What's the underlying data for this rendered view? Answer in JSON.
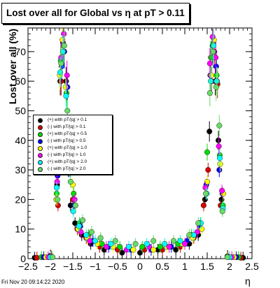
{
  "chart_data": {
    "type": "scatter",
    "title": "Lost over all for Global vs   η at pT > 0.11",
    "xlabel": "η",
    "ylabel": "Lost over all (%)",
    "xlim": [
      -2.5,
      2.5
    ],
    "ylim": [
      0,
      78
    ],
    "x_ticks": [
      "−2.5",
      "−2",
      "−1.5",
      "−1",
      "−0.5",
      "0",
      "0.5",
      "1",
      "1.5",
      "2",
      "2.5"
    ],
    "y_ticks": [
      "0",
      "10",
      "20",
      "30",
      "40",
      "50",
      "60",
      "70"
    ],
    "legend_position": "middle-left",
    "grid": false,
    "series": [
      {
        "name": "(+) with pT/|q| > 0.1",
        "color": "#000000",
        "points": [
          [
            -2.35,
            0.3
          ],
          [
            -2.0,
            1.0
          ],
          [
            -1.85,
            25
          ],
          [
            -1.78,
            60
          ],
          [
            -1.72,
            73
          ],
          [
            -1.65,
            60
          ],
          [
            -1.6,
            30
          ],
          [
            -1.55,
            18
          ],
          [
            -1.45,
            12
          ],
          [
            -1.3,
            8
          ],
          [
            -1.1,
            5
          ],
          [
            -0.8,
            3
          ],
          [
            -0.4,
            2
          ],
          [
            0.0,
            2
          ],
          [
            0.4,
            3
          ],
          [
            0.8,
            3
          ],
          [
            1.1,
            5
          ],
          [
            1.3,
            8
          ],
          [
            1.45,
            20
          ],
          [
            1.55,
            43
          ],
          [
            1.62,
            72
          ],
          [
            1.68,
            60
          ],
          [
            1.75,
            40
          ],
          [
            1.82,
            20
          ],
          [
            1.95,
            0.8
          ],
          [
            2.3,
            0.3
          ]
        ]
      },
      {
        "name": "(-) with pT/|q| > 0.1",
        "color": "#d40000",
        "points": [
          [
            -2.3,
            0.3
          ],
          [
            -1.98,
            0.8
          ],
          [
            -1.83,
            18
          ],
          [
            -1.76,
            60
          ],
          [
            -1.7,
            70
          ],
          [
            -1.63,
            58
          ],
          [
            -1.58,
            32
          ],
          [
            -1.5,
            20
          ],
          [
            -1.4,
            10
          ],
          [
            -1.2,
            7
          ],
          [
            -0.9,
            4
          ],
          [
            -0.5,
            3
          ],
          [
            0.1,
            3
          ],
          [
            0.5,
            3
          ],
          [
            0.9,
            4
          ],
          [
            1.2,
            7
          ],
          [
            1.42,
            18
          ],
          [
            1.52,
            30
          ],
          [
            1.6,
            60
          ],
          [
            1.66,
            70
          ],
          [
            1.73,
            59
          ],
          [
            1.8,
            18
          ],
          [
            1.96,
            0.8
          ],
          [
            2.25,
            0.3
          ]
        ]
      },
      {
        "name": "(+) with pT/|q| > 0.5",
        "color": "#00dd00",
        "points": [
          [
            -2.2,
            0.5
          ],
          [
            -1.86,
            22
          ],
          [
            -1.77,
            67
          ],
          [
            -1.71,
            72
          ],
          [
            -1.64,
            56
          ],
          [
            -1.57,
            35
          ],
          [
            -1.48,
            22
          ],
          [
            -1.35,
            12
          ],
          [
            -1.15,
            8
          ],
          [
            -0.85,
            5
          ],
          [
            -0.45,
            4
          ],
          [
            0.05,
            4
          ],
          [
            0.45,
            4
          ],
          [
            0.85,
            5
          ],
          [
            1.15,
            8
          ],
          [
            1.35,
            12
          ],
          [
            1.5,
            36
          ],
          [
            1.58,
            68
          ],
          [
            1.64,
            73
          ],
          [
            1.71,
            62
          ],
          [
            1.78,
            35
          ],
          [
            1.85,
            18
          ],
          [
            2.2,
            0.5
          ]
        ]
      },
      {
        "name": "(-) with pT/|q| > 0.5",
        "color": "#0000ff",
        "points": [
          [
            -2.15,
            0.5
          ],
          [
            -1.84,
            28
          ],
          [
            -1.75,
            65
          ],
          [
            -1.69,
            70
          ],
          [
            -1.62,
            58
          ],
          [
            -1.56,
            30
          ],
          [
            -1.47,
            18
          ],
          [
            -1.33,
            11
          ],
          [
            -1.05,
            6
          ],
          [
            -0.7,
            4
          ],
          [
            -0.2,
            3
          ],
          [
            0.25,
            3
          ],
          [
            0.7,
            4
          ],
          [
            1.05,
            6
          ],
          [
            1.33,
            11
          ],
          [
            1.48,
            25
          ],
          [
            1.57,
            62
          ],
          [
            1.63,
            70
          ],
          [
            1.7,
            65
          ],
          [
            1.77,
            30
          ],
          [
            1.84,
            22
          ],
          [
            2.15,
            0.5
          ]
        ]
      },
      {
        "name": "(+) with pT/|q| > 1.0",
        "color": "#ffff00",
        "points": [
          [
            -2.1,
            0.5
          ],
          [
            -1.87,
            20
          ],
          [
            -1.79,
            62
          ],
          [
            -1.73,
            74
          ],
          [
            -1.66,
            58
          ],
          [
            -1.59,
            33
          ],
          [
            -1.5,
            25
          ],
          [
            -1.38,
            10
          ],
          [
            -1.18,
            7
          ],
          [
            -0.95,
            5
          ],
          [
            -0.6,
            4
          ],
          [
            -0.15,
            3
          ],
          [
            0.3,
            3
          ],
          [
            0.6,
            4
          ],
          [
            0.95,
            5
          ],
          [
            1.18,
            7
          ],
          [
            1.38,
            10
          ],
          [
            1.5,
            26
          ],
          [
            1.59,
            62
          ],
          [
            1.65,
            74
          ],
          [
            1.72,
            60
          ],
          [
            1.79,
            32
          ],
          [
            1.86,
            22
          ],
          [
            2.1,
            0.5
          ]
        ]
      },
      {
        "name": "(-) with pT/|q| > 1.0",
        "color": "#ff00ff",
        "points": [
          [
            -2.05,
            0.5
          ],
          [
            -1.85,
            26
          ],
          [
            -1.76,
            68
          ],
          [
            -1.7,
            76
          ],
          [
            -1.63,
            62
          ],
          [
            -1.55,
            38
          ],
          [
            -1.46,
            20
          ],
          [
            -1.32,
            9
          ],
          [
            -1.12,
            6
          ],
          [
            -0.75,
            4
          ],
          [
            -0.3,
            3
          ],
          [
            0.2,
            4
          ],
          [
            0.65,
            4
          ],
          [
            1.0,
            5
          ],
          [
            1.28,
            9
          ],
          [
            1.46,
            24
          ],
          [
            1.56,
            66
          ],
          [
            1.62,
            75
          ],
          [
            1.69,
            68
          ],
          [
            1.76,
            38
          ],
          [
            1.83,
            23
          ],
          [
            2.05,
            0.5
          ]
        ]
      },
      {
        "name": "(+) with pT/|q| > 2.0",
        "color": "#00ffff",
        "points": [
          [
            -2.0,
            0.5
          ],
          [
            -1.86,
            24
          ],
          [
            -1.78,
            63
          ],
          [
            -1.72,
            70
          ],
          [
            -1.65,
            55
          ],
          [
            -1.58,
            30
          ],
          [
            -1.49,
            16
          ],
          [
            -1.36,
            11
          ],
          [
            -1.2,
            8
          ],
          [
            -1.0,
            6
          ],
          [
            -0.65,
            5
          ],
          [
            -0.25,
            4
          ],
          [
            0.15,
            5
          ],
          [
            0.55,
            5
          ],
          [
            0.9,
            6
          ],
          [
            1.2,
            8
          ],
          [
            1.36,
            12
          ],
          [
            1.49,
            22
          ],
          [
            1.58,
            60
          ],
          [
            1.64,
            72
          ],
          [
            1.71,
            60
          ],
          [
            1.78,
            34
          ],
          [
            1.85,
            17
          ],
          [
            2.0,
            0.5
          ]
        ]
      },
      {
        "name": "(-) with pT/|q| > 2.0",
        "color": "#66dd66",
        "points": [
          [
            -1.95,
            0.5
          ],
          [
            -1.84,
            20
          ],
          [
            -1.76,
            66
          ],
          [
            -1.69,
            72
          ],
          [
            -1.62,
            50
          ],
          [
            -1.55,
            26
          ],
          [
            -1.44,
            18
          ],
          [
            -1.28,
            13
          ],
          [
            -1.08,
            9
          ],
          [
            -0.88,
            7
          ],
          [
            -0.55,
            6
          ],
          [
            -0.1,
            5
          ],
          [
            0.3,
            6
          ],
          [
            0.75,
            6
          ],
          [
            1.1,
            8
          ],
          [
            1.3,
            12
          ],
          [
            1.47,
            22
          ],
          [
            1.56,
            56
          ],
          [
            1.63,
            70
          ],
          [
            1.7,
            58
          ],
          [
            1.77,
            45
          ],
          [
            1.84,
            16
          ],
          [
            1.95,
            0.5
          ]
        ]
      }
    ]
  },
  "footer": {
    "timestamp": "Fri Nov 20 09:14:22 2020"
  }
}
